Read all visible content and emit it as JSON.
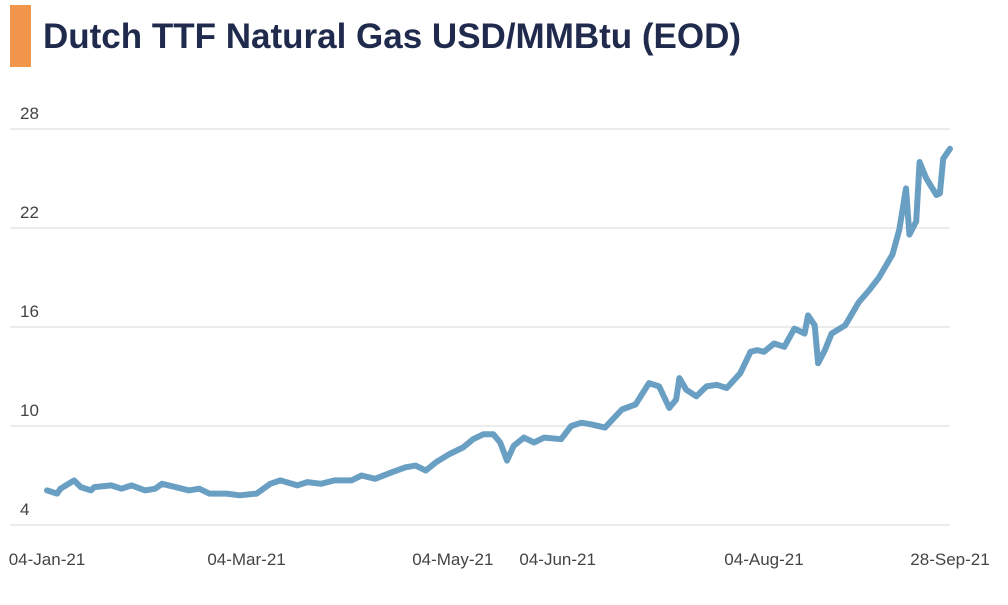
{
  "chart_data": {
    "type": "line",
    "title": "Dutch TTF Natural Gas USD/MMBtu (EOD)",
    "x": [
      "2021-01-04",
      "2021-01-07",
      "2021-01-08",
      "2021-01-12",
      "2021-01-14",
      "2021-01-17",
      "2021-01-18",
      "2021-01-23",
      "2021-01-26",
      "2021-01-29",
      "2021-02-02",
      "2021-02-05",
      "2021-02-07",
      "2021-02-11",
      "2021-02-15",
      "2021-02-18",
      "2021-02-21",
      "2021-02-26",
      "2021-03-02",
      "2021-03-07",
      "2021-03-11",
      "2021-03-14",
      "2021-03-19",
      "2021-03-22",
      "2021-03-26",
      "2021-03-30",
      "2021-04-04",
      "2021-04-07",
      "2021-04-11",
      "2021-04-16",
      "2021-04-20",
      "2021-04-23",
      "2021-04-26",
      "2021-04-29",
      "2021-05-03",
      "2021-05-07",
      "2021-05-10",
      "2021-05-13",
      "2021-05-16",
      "2021-05-18",
      "2021-05-20",
      "2021-05-22",
      "2021-05-25",
      "2021-05-28",
      "2021-05-31",
      "2021-06-05",
      "2021-06-08",
      "2021-06-11",
      "2021-06-14",
      "2021-06-18",
      "2021-06-23",
      "2021-06-27",
      "2021-07-01",
      "2021-07-04",
      "2021-07-07",
      "2021-07-09",
      "2021-07-10",
      "2021-07-12",
      "2021-07-15",
      "2021-07-18",
      "2021-07-21",
      "2021-07-24",
      "2021-07-28",
      "2021-07-31",
      "2021-08-02",
      "2021-08-04",
      "2021-08-07",
      "2021-08-10",
      "2021-08-13",
      "2021-08-16",
      "2021-08-17",
      "2021-08-19",
      "2021-08-20",
      "2021-08-22",
      "2021-08-24",
      "2021-08-28",
      "2021-09-01",
      "2021-09-04",
      "2021-09-07",
      "2021-09-11",
      "2021-09-13",
      "2021-09-15",
      "2021-09-16",
      "2021-09-18",
      "2021-09-19",
      "2021-09-21",
      "2021-09-24",
      "2021-09-25",
      "2021-09-26",
      "2021-09-28"
    ],
    "series": [
      {
        "color": "#6a9fc4",
        "values": [
          6.1,
          5.9,
          6.2,
          6.7,
          6.3,
          6.1,
          6.3,
          6.4,
          6.2,
          6.4,
          6.1,
          6.2,
          6.5,
          6.3,
          6.1,
          6.2,
          5.9,
          5.9,
          5.8,
          5.9,
          6.5,
          6.7,
          6.4,
          6.6,
          6.5,
          6.7,
          6.7,
          7.0,
          6.8,
          7.2,
          7.5,
          7.6,
          7.3,
          7.8,
          8.3,
          8.7,
          9.2,
          9.5,
          9.5,
          9.0,
          7.9,
          8.8,
          9.3,
          9.0,
          9.3,
          9.2,
          10.0,
          10.2,
          10.1,
          9.9,
          11.0,
          11.3,
          12.6,
          12.4,
          11.1,
          11.6,
          12.9,
          12.2,
          11.8,
          12.4,
          12.5,
          12.3,
          13.2,
          14.5,
          14.6,
          14.5,
          15.0,
          14.8,
          15.9,
          15.6,
          16.7,
          16.1,
          13.8,
          14.6,
          15.6,
          16.1,
          17.5,
          18.2,
          19.0,
          20.4,
          21.9,
          24.4,
          21.6,
          22.4,
          26.0,
          25.0,
          24.0,
          24.1,
          26.2,
          26.8
        ]
      }
    ],
    "xlim": [
      "2021-01-04",
      "2021-09-28"
    ],
    "xticks": [
      {
        "value": "2021-01-04",
        "label": "04-Jan-21"
      },
      {
        "value": "2021-03-04",
        "label": "04-Mar-21"
      },
      {
        "value": "2021-05-04",
        "label": "04-May-21"
      },
      {
        "value": "2021-06-04",
        "label": "04-Jun-21"
      },
      {
        "value": "2021-08-04",
        "label": "04-Aug-21"
      },
      {
        "value": "2021-09-28",
        "label": "28-Sep-21"
      }
    ],
    "ylim": [
      4,
      28
    ],
    "yticks": [
      4,
      10,
      16,
      22,
      28
    ],
    "grid": true
  }
}
